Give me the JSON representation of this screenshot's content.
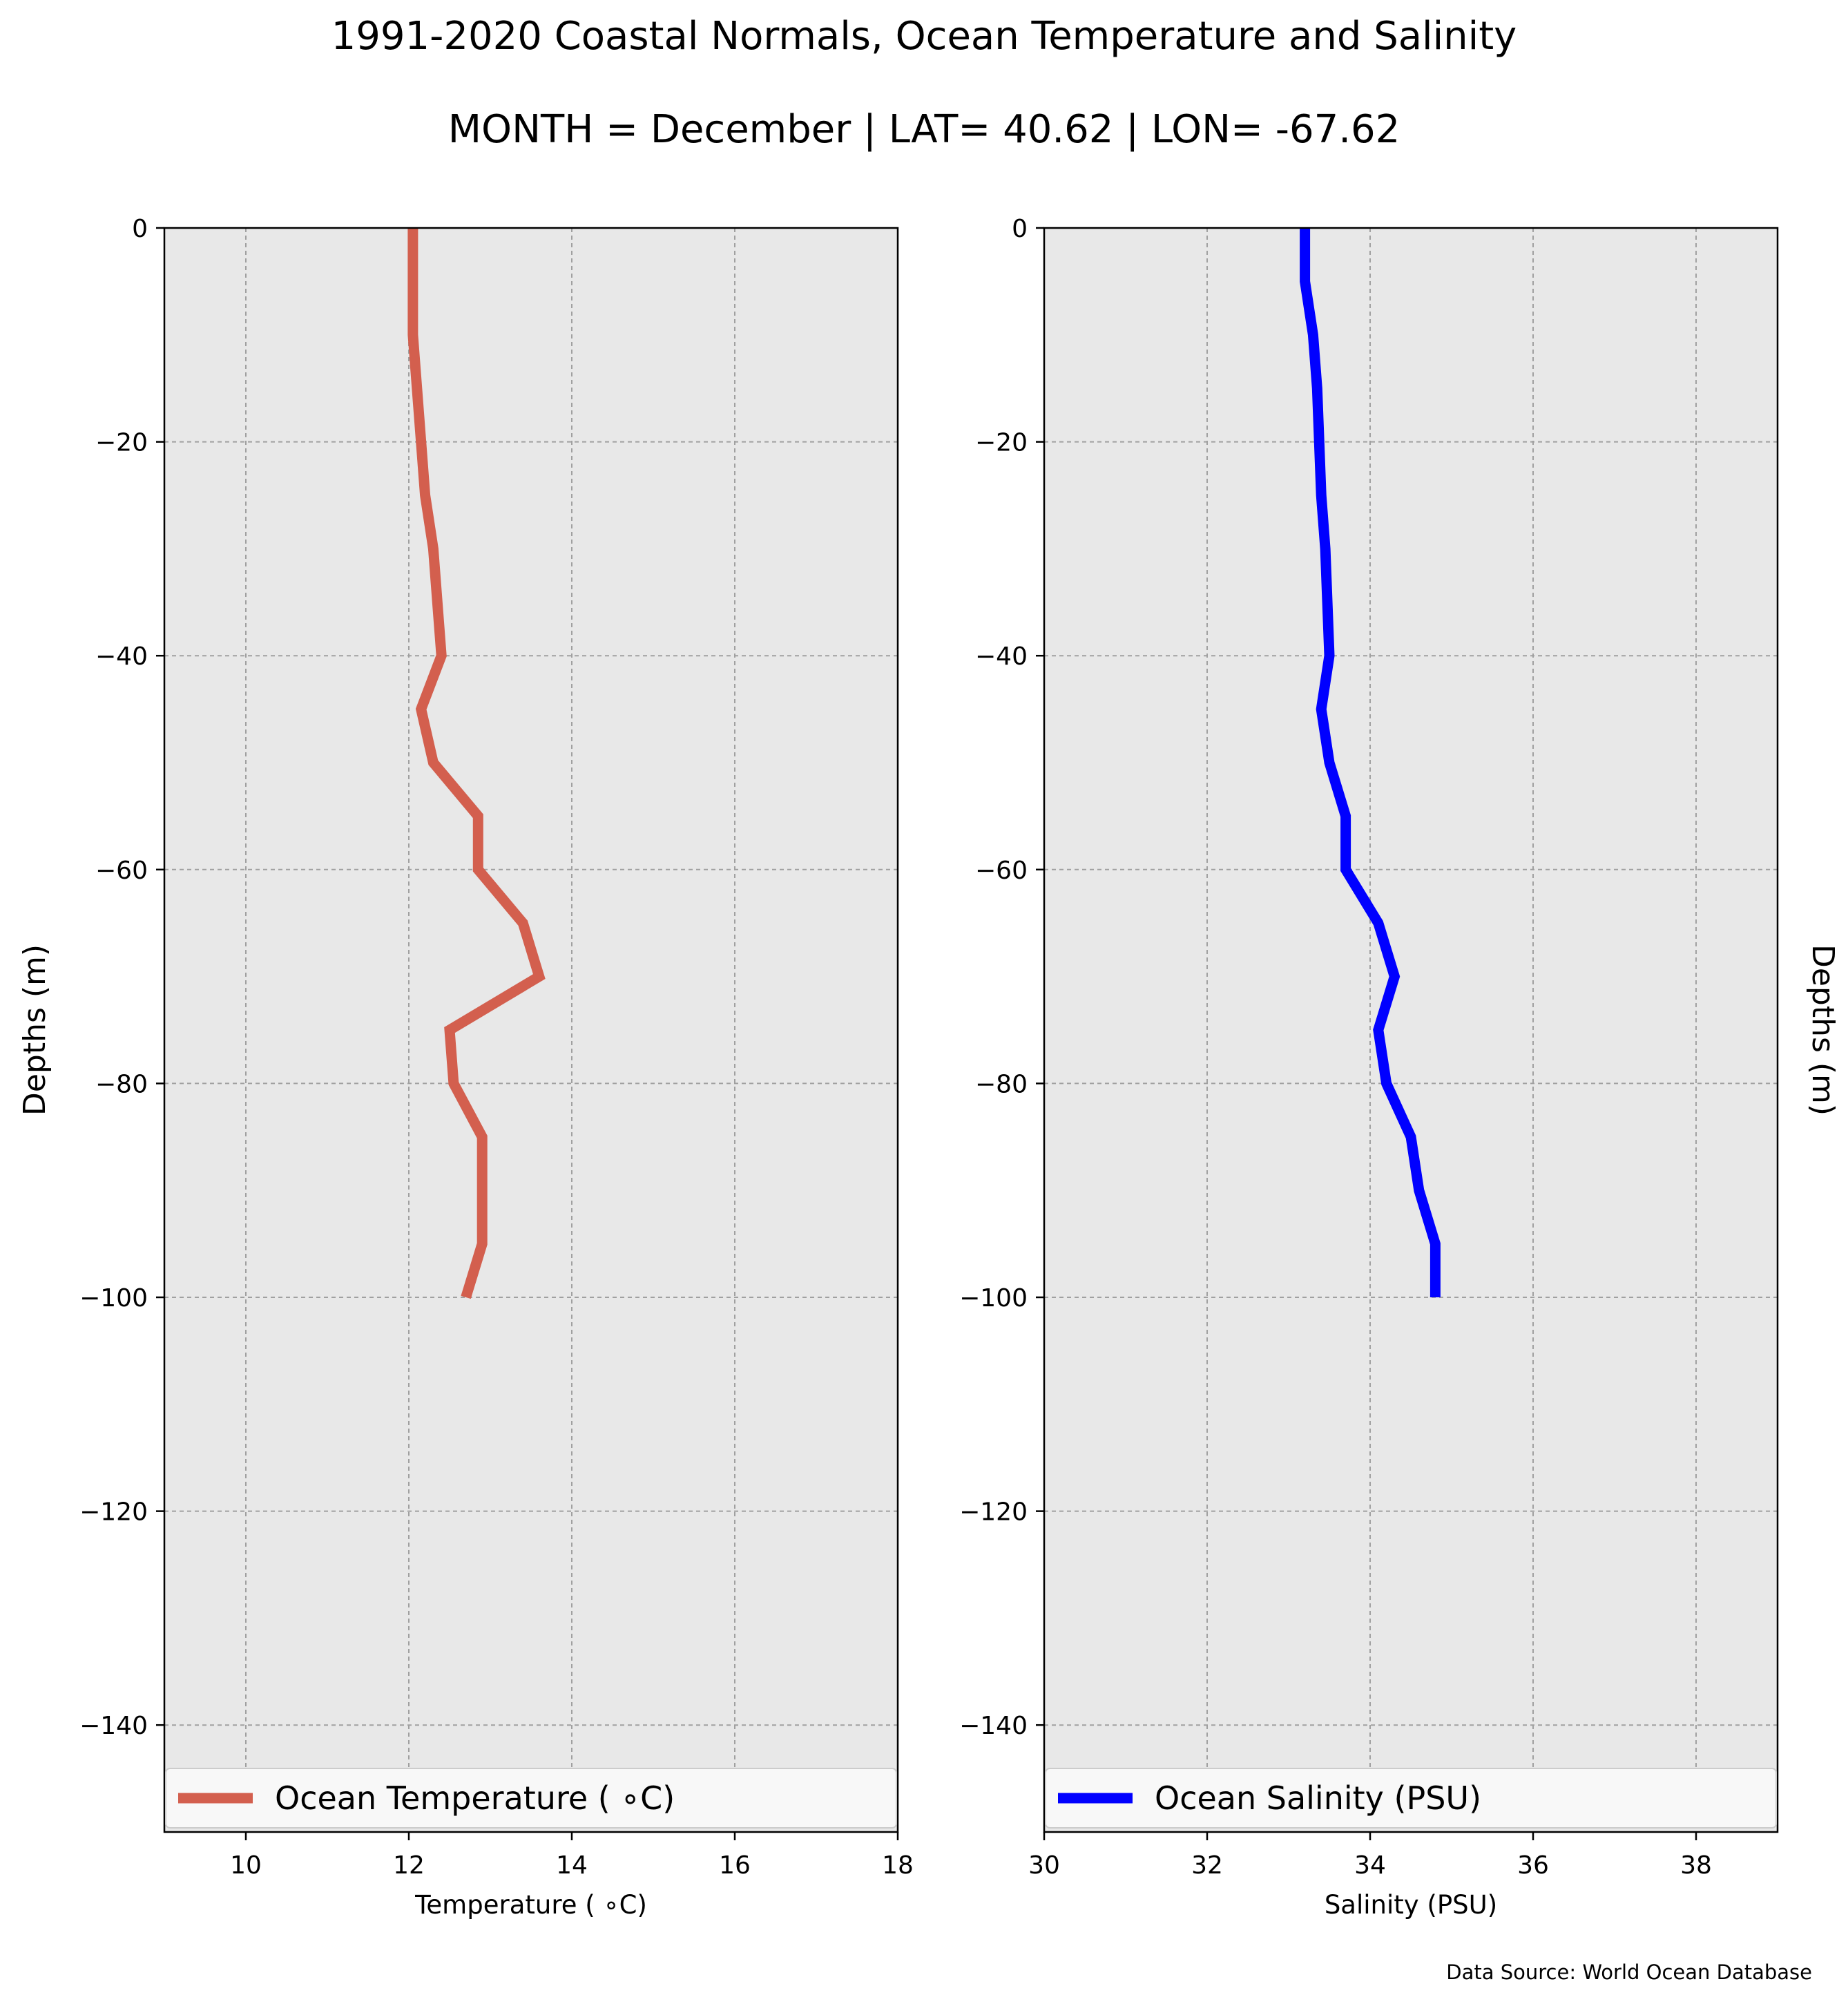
{
  "header": {
    "title": "1991-2020 Coastal Normals, Ocean Temperature and Salinity",
    "subtitle": "MONTH = December | LAT= 40.62 | LON= -67.62"
  },
  "source": "Data Source: World Ocean Database",
  "chart_data": [
    {
      "type": "line",
      "xlabel": "Temperature ($^\\circ$C)",
      "xlabel_display": "Temperature ( ∘C)",
      "ylabel": "Depths (m)",
      "xlim": [
        9,
        18
      ],
      "ylim": [
        -150,
        0
      ],
      "xticks": [
        10,
        12,
        14,
        16,
        18
      ],
      "yticks": [
        0,
        -20,
        -40,
        -60,
        -80,
        -100,
        -120,
        -140
      ],
      "grid": true,
      "legend_placement": "lower",
      "series": [
        {
          "name": "Ocean Temperature ( ∘C)",
          "color": "#d35f4e",
          "x": [
            12.05,
            12.05,
            12.05,
            12.1,
            12.2,
            12.3,
            12.4,
            12.15,
            12.3,
            12.85,
            12.85,
            13.4,
            13.6,
            12.5,
            12.55,
            12.9,
            12.9,
            12.9,
            12.7
          ],
          "y": [
            0,
            -5,
            -10,
            -15,
            -25,
            -30,
            -40,
            -45,
            -50,
            -55,
            -60,
            -65,
            -70,
            -75,
            -80,
            -85,
            -90,
            -95,
            -100
          ]
        }
      ]
    },
    {
      "type": "line",
      "xlabel": "Salinity (PSU)",
      "ylabel": "Depths (m)",
      "xlim": [
        30,
        39
      ],
      "ylim": [
        -150,
        0
      ],
      "xticks": [
        30,
        32,
        34,
        36,
        38
      ],
      "yticks": [
        0,
        -20,
        -40,
        -60,
        -80,
        -100,
        -120,
        -140
      ],
      "grid": true,
      "legend_placement": "lower",
      "series": [
        {
          "name": "Ocean Salinity (PSU)",
          "color": "#0000ff",
          "x": [
            33.2,
            33.2,
            33.3,
            33.35,
            33.4,
            33.45,
            33.5,
            33.4,
            33.5,
            33.7,
            33.7,
            34.1,
            34.3,
            34.1,
            34.2,
            34.5,
            34.6,
            34.8,
            34.8
          ],
          "y": [
            0,
            -5,
            -10,
            -15,
            -25,
            -30,
            -40,
            -45,
            -50,
            -55,
            -60,
            -65,
            -70,
            -75,
            -80,
            -85,
            -90,
            -95,
            -100
          ]
        }
      ]
    }
  ]
}
